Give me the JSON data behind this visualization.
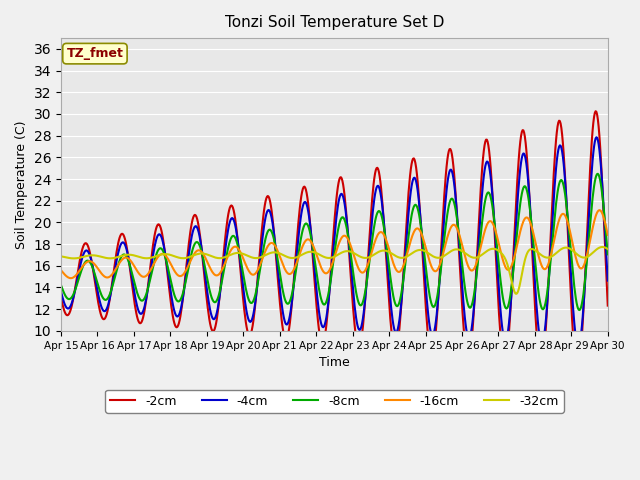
{
  "title": "Tonzi Soil Temperature Set D",
  "xlabel": "Time",
  "ylabel": "Soil Temperature (C)",
  "ylim": [
    10,
    37
  ],
  "yticks": [
    10,
    12,
    14,
    16,
    18,
    20,
    22,
    24,
    26,
    28,
    30,
    32,
    34,
    36
  ],
  "annotation": "TZ_fmet",
  "bg_color": "#e8e8e8",
  "series": {
    "-2cm": {
      "color": "#cc0000",
      "lw": 1.5
    },
    "-4cm": {
      "color": "#0000cc",
      "lw": 1.5
    },
    "-8cm": {
      "color": "#00aa00",
      "lw": 1.5
    },
    "-16cm": {
      "color": "#ff8800",
      "lw": 1.5
    },
    "-32cm": {
      "color": "#cccc00",
      "lw": 1.5
    }
  },
  "x_tick_labels": [
    "Apr 15",
    "Apr 16",
    "Apr 17",
    "Apr 18",
    "Apr 19",
    "Apr 20",
    "Apr 21",
    "Apr 22",
    "Apr 23",
    "Apr 24",
    "Apr 25",
    "Apr 26",
    "Apr 27",
    "Apr 28",
    "Apr 29",
    "Apr 30"
  ],
  "num_points_per_day": 48,
  "days": 15
}
